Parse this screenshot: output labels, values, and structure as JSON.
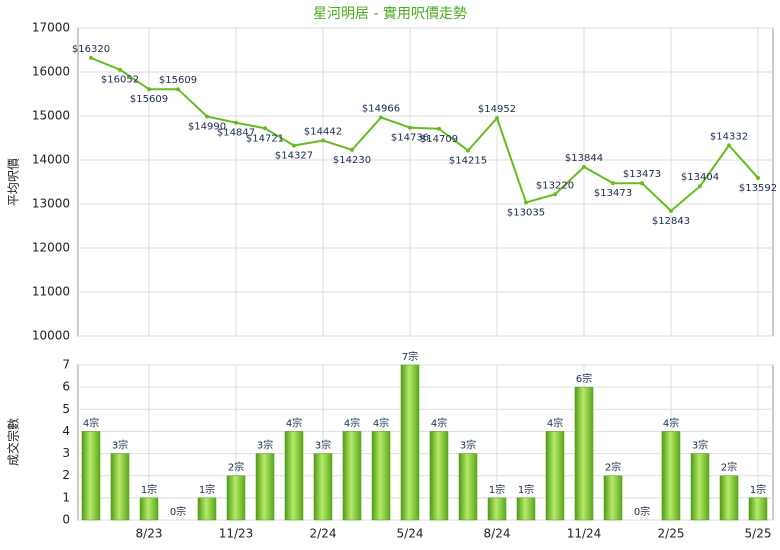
{
  "chart_data": [
    {
      "type": "line",
      "title": "星河明居 - 實用呎價走勢",
      "ylabel": "平均呎價",
      "color": "#66bb22",
      "grid": true,
      "values": [
        16320,
        16052,
        15609,
        15609,
        14990,
        14847,
        14721,
        14327,
        14442,
        14230,
        14966,
        14736,
        14709,
        14215,
        14952,
        13035,
        13220,
        13844,
        13473,
        13473,
        12843,
        13404,
        14332,
        13592
      ],
      "value_labels": [
        "$16320",
        "$16052",
        "$15609",
        "$15609",
        "$14990",
        "$14847",
        "$14721",
        "$14327",
        "$14442",
        "$14230",
        "$14966",
        "$14736",
        "$14709",
        "$14215",
        "$14952",
        "$13035",
        "$13220",
        "$13844",
        "$13473",
        "$13473",
        "$12843",
        "$13404",
        "$14332",
        "$13592"
      ],
      "ylim": [
        10000,
        17000
      ],
      "yticks": [
        10000,
        11000,
        12000,
        13000,
        14000,
        15000,
        16000,
        17000
      ]
    },
    {
      "type": "bar",
      "ylabel": "成交宗數",
      "color": "#77c22a",
      "grid": true,
      "categories": [
        null,
        null,
        "8/23",
        null,
        null,
        "11/23",
        null,
        null,
        "2/24",
        null,
        null,
        "5/24",
        null,
        null,
        "8/24",
        null,
        null,
        "11/24",
        null,
        null,
        "2/25",
        null,
        null,
        "5/25"
      ],
      "values": [
        4,
        3,
        1,
        0,
        1,
        2,
        3,
        4,
        3,
        4,
        4,
        7,
        4,
        3,
        1,
        1,
        4,
        6,
        2,
        0,
        4,
        3,
        2,
        1
      ],
      "value_labels": [
        "4宗",
        "3宗",
        "1宗",
        "0宗",
        "1宗",
        "2宗",
        "3宗",
        "4宗",
        "3宗",
        "4宗",
        "4宗",
        "7宗",
        "4宗",
        "3宗",
        "1宗",
        "1宗",
        "4宗",
        "6宗",
        "2宗",
        "0宗",
        "4宗",
        "3宗",
        "2宗",
        "1宗"
      ],
      "ylim": [
        0,
        7
      ],
      "yticks": [
        0,
        1,
        2,
        3,
        4,
        5,
        6,
        7
      ]
    }
  ]
}
